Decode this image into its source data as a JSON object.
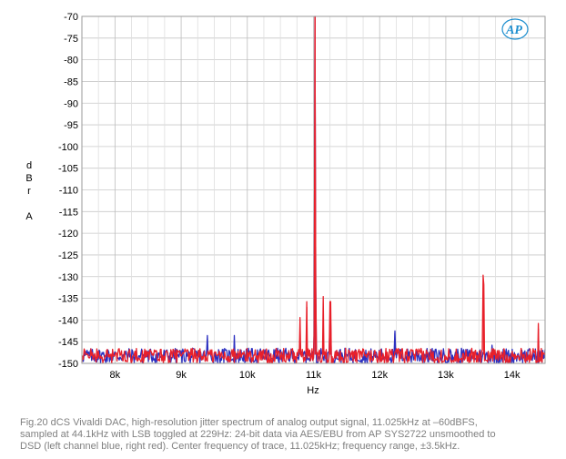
{
  "chart_data": {
    "type": "line",
    "title": "",
    "xlabel": "Hz",
    "ylabel": "d B r A",
    "xlim": [
      7500,
      14500
    ],
    "ylim": [
      -150,
      -70
    ],
    "x_ticks": [
      {
        "value": 8000,
        "label": "8k"
      },
      {
        "value": 9000,
        "label": "9k"
      },
      {
        "value": 10000,
        "label": "10k"
      },
      {
        "value": 11000,
        "label": "11k"
      },
      {
        "value": 12000,
        "label": "12k"
      },
      {
        "value": 13000,
        "label": "13k"
      },
      {
        "value": 14000,
        "label": "14k"
      }
    ],
    "y_ticks": [
      -70,
      -75,
      -80,
      -85,
      -90,
      -95,
      -100,
      -105,
      -110,
      -115,
      -120,
      -125,
      -130,
      -135,
      -140,
      -145,
      -150
    ],
    "grid": true,
    "series": [
      {
        "color": "#2b2fc0",
        "noise_floor": -148,
        "peaks": [
          {
            "x": 11025,
            "y": -70
          },
          {
            "x": 10796,
            "y": -145
          },
          {
            "x": 11254,
            "y": -145
          },
          {
            "x": 9400,
            "y": -146
          },
          {
            "x": 9800,
            "y": -146
          },
          {
            "x": 12230,
            "y": -143
          },
          {
            "x": 13700,
            "y": -147
          }
        ]
      },
      {
        "color": "#e8202a",
        "noise_floor": -148,
        "peaks": [
          {
            "x": 11025,
            "y": -70
          },
          {
            "x": 10796,
            "y": -140
          },
          {
            "x": 11254,
            "y": -140
          },
          {
            "x": 10900,
            "y": -137
          },
          {
            "x": 11150,
            "y": -137
          },
          {
            "x": 13570,
            "y": -135
          },
          {
            "x": 14400,
            "y": -142
          }
        ]
      }
    ]
  },
  "axis": {
    "ylabel_letters": [
      "d",
      "B",
      "r",
      "A"
    ],
    "xlabel": "Hz"
  },
  "logo": {
    "text": "AP",
    "color": "#1f8fcf"
  },
  "caption": {
    "line1": "Fig.20 dCS Vivaldi DAC, high-resolution jitter spectrum of analog output signal, 11.025kHz at –60dBFS,",
    "line2": "sampled at 44.1kHz with LSB toggled at 229Hz: 24-bit data via AES/EBU from AP SYS2722 unsmoothed to",
    "line3": "DSD (left channel blue, right red). Center frequency of trace, 11.025kHz; frequency range, ±3.5kHz."
  }
}
